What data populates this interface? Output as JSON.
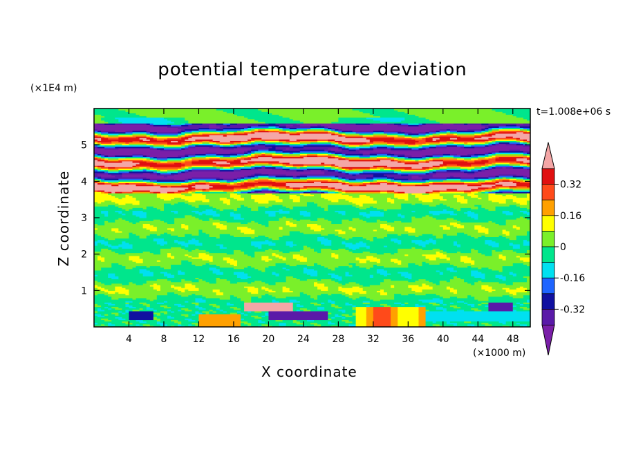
{
  "chart_data": {
    "type": "heatmap",
    "title": "potential temperature deviation",
    "xlabel": "X coordinate",
    "ylabel": "Z coordinate",
    "x_unit": "(×1000 m)",
    "y_unit": "(×1E4 m)",
    "annotation": "t=1.008e+06 s",
    "xlim": [
      0,
      50
    ],
    "ylim": [
      0,
      6
    ],
    "x_ticks": [
      "4",
      "8",
      "12",
      "16",
      "20",
      "24",
      "28",
      "32",
      "36",
      "40",
      "44",
      "48"
    ],
    "y_ticks": [
      "1",
      "2",
      "3",
      "4",
      "5"
    ],
    "colorbar": {
      "levels": [
        -0.4,
        -0.32,
        -0.24,
        -0.16,
        -0.08,
        0,
        0.08,
        0.16,
        0.24,
        0.32,
        0.4
      ],
      "labels": [
        "0.32",
        "0.16",
        "0",
        "-0.16",
        "-0.32"
      ],
      "colors": [
        "#7a1fa8",
        "#5a1aa8",
        "#1010a0",
        "#1e64ff",
        "#00e0f0",
        "#00e68c",
        "#7af02a",
        "#ffff00",
        "#ffa000",
        "#ff4a1a",
        "#e01010",
        "#f4a6a6"
      ]
    },
    "structure": {
      "bands": [
        {
          "z": [
            5.6,
            6.0
          ],
          "values": [
            0.0,
            0.08,
            -0.08
          ]
        },
        {
          "z": [
            3.7,
            5.6
          ],
          "values": [
            -0.4,
            0.4,
            -0.32,
            0.32
          ]
        },
        {
          "z": [
            0.7,
            3.7
          ],
          "values": [
            0.0,
            -0.08,
            0.08
          ]
        },
        {
          "z": [
            0.0,
            0.7
          ],
          "values": [
            -0.16,
            0.24,
            -0.32,
            0.32,
            0.0
          ]
        }
      ]
    }
  }
}
